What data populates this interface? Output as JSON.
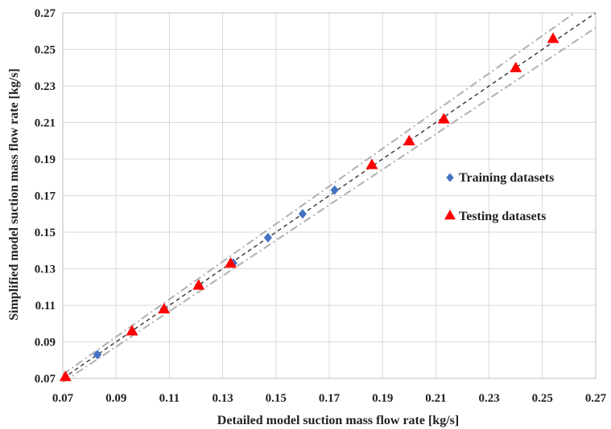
{
  "chart_data": {
    "type": "scatter",
    "title": "",
    "xlabel": "Detailed model suction mass flow rate [kg/s]",
    "ylabel": "Simplified model suction mass flow rate [kg/s]",
    "xlim": [
      0.07,
      0.27
    ],
    "ylim": [
      0.07,
      0.27
    ],
    "xticks": [
      "0.07",
      "0.09",
      "0.11",
      "0.13",
      "0.15",
      "0.17",
      "0.19",
      "0.21",
      "0.23",
      "0.25",
      "0.27"
    ],
    "yticks": [
      "0.07",
      "0.09",
      "0.11",
      "0.13",
      "0.15",
      "0.17",
      "0.19",
      "0.21",
      "0.23",
      "0.25",
      "0.27"
    ],
    "grid": true,
    "legend_position": "right",
    "series": [
      {
        "name": "Training datasets",
        "marker": "diamond",
        "color": "#4472c4",
        "x": [
          0.083,
          0.108,
          0.121,
          0.134,
          0.147,
          0.16,
          0.172
        ],
        "y": [
          0.083,
          0.108,
          0.121,
          0.133,
          0.147,
          0.16,
          0.173
        ]
      },
      {
        "name": "Testing datasets",
        "marker": "triangle",
        "color": "#ff0000",
        "x": [
          0.071,
          0.096,
          0.108,
          0.121,
          0.133,
          0.186,
          0.2,
          0.213,
          0.24,
          0.254
        ],
        "y": [
          0.071,
          0.096,
          0.108,
          0.121,
          0.133,
          0.187,
          0.2,
          0.212,
          0.24,
          0.256
        ]
      }
    ],
    "reference_lines": [
      {
        "style": "dashed",
        "color": "#333333",
        "slope": 1.0
      },
      {
        "style": "dash-dot",
        "color": "#b0b0b0",
        "slope": 1.03
      },
      {
        "style": "dash-dot",
        "color": "#b0b0b0",
        "slope": 0.97
      }
    ]
  }
}
